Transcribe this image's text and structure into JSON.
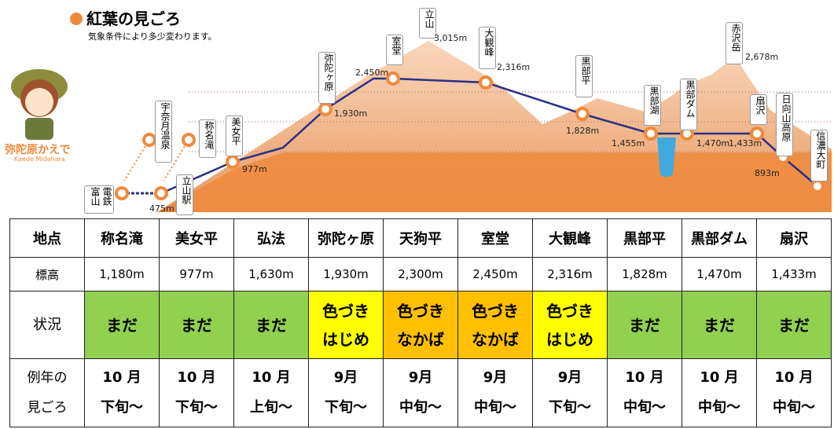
{
  "header": {
    "title": "紅葉の見ごろ",
    "subtitle": "気象条件により多少変わります。"
  },
  "mascot": {
    "name": "弥陀原かえで",
    "romaji": "Kaede Midahara"
  },
  "stations": [
    {
      "name": "電鉄富山"
    },
    {
      "name": "立山駅",
      "elevation": "475m"
    },
    {
      "name": "宇奈月温泉"
    },
    {
      "name": "称名滝"
    },
    {
      "name": "美女平",
      "elevation": "977m"
    },
    {
      "name": "弥陀ヶ原",
      "elevation": "1,930m"
    },
    {
      "name": "室堂",
      "elevation": "2,450m"
    },
    {
      "name": "立山",
      "elevation": "3,015m"
    },
    {
      "name": "大観峰",
      "elevation": "2,316m"
    },
    {
      "name": "黒部平",
      "elevation": "1,828m"
    },
    {
      "name": "黒部湖",
      "elevation": "1,455m"
    },
    {
      "name": "黒部ダム",
      "elevation": "1,470m"
    },
    {
      "name": "赤沢岳",
      "elevation": "2,678m"
    },
    {
      "name": "扇沢",
      "elevation": "1,433m"
    },
    {
      "name": "日向山高原",
      "elevation": "893m"
    },
    {
      "name": "信濃大町"
    }
  ],
  "table": {
    "header": [
      "地点",
      "称名滝",
      "美女平",
      "弘法",
      "弥陀ヶ原",
      "天狗平",
      "室堂",
      "大観峰",
      "黒部平",
      "黒部ダム",
      "扇沢"
    ],
    "elevation": [
      "標高",
      "1,180m",
      "977m",
      "1,630m",
      "1,930m",
      "2,300m",
      "2,450m",
      "2,316m",
      "1,828m",
      "1,470m",
      "1,433m"
    ],
    "status_label": "状況",
    "status": [
      {
        "text": "まだ",
        "color": "#92d050"
      },
      {
        "text": "まだ",
        "color": "#92d050"
      },
      {
        "text": "まだ",
        "color": "#92d050"
      },
      {
        "text": "色づき\nはじめ",
        "color": "#ffff00"
      },
      {
        "text": "色づき\nなかば",
        "color": "#ffc000"
      },
      {
        "text": "色づき\nなかば",
        "color": "#ffc000"
      },
      {
        "text": "色づき\nはじめ",
        "color": "#ffff00"
      },
      {
        "text": "まだ",
        "color": "#92d050"
      },
      {
        "text": "まだ",
        "color": "#92d050"
      },
      {
        "text": "まだ",
        "color": "#92d050"
      }
    ],
    "peak_label": "例年の\n見ごろ",
    "peak": [
      "10 月\n下旬〜",
      "10 月\n下旬〜",
      "10 月\n上旬〜",
      "9月\n下旬〜",
      "9月\n中旬〜",
      "9月\n中旬〜",
      "9月\n下旬〜",
      "10 月\n中旬〜",
      "10 月\n中旬〜",
      "10 月\n中旬〜"
    ]
  }
}
